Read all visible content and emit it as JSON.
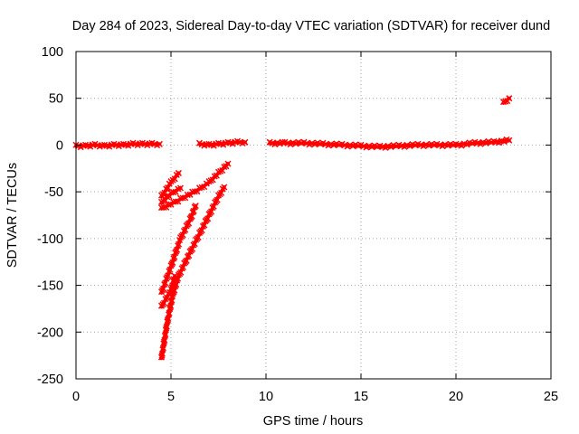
{
  "chart_data": {
    "type": "scatter",
    "title": "Day 284 of 2023, Sidereal Day-to-day VTEC variation (SDTVAR) for receiver dund",
    "xlabel": "GPS time / hours",
    "ylabel": "SDTVAR / TECUs",
    "xlim": [
      0,
      25
    ],
    "ylim": [
      -250,
      100
    ],
    "xticks": [
      0,
      5,
      10,
      15,
      20,
      25
    ],
    "yticks": [
      -250,
      -200,
      -150,
      -100,
      -50,
      0,
      50,
      100
    ],
    "grid": true,
    "marker": "cross",
    "series": [
      {
        "color": "#ff0000",
        "segments": [
          [
            [
              0.0,
              -1
            ],
            [
              0.5,
              -1
            ],
            [
              1.0,
              0
            ],
            [
              1.5,
              -1
            ],
            [
              2.0,
              0
            ],
            [
              2.5,
              0
            ],
            [
              3.0,
              1
            ],
            [
              3.5,
              1
            ],
            [
              4.0,
              1
            ],
            [
              4.4,
              1
            ]
          ],
          [
            [
              6.5,
              1
            ],
            [
              7.0,
              0
            ],
            [
              7.5,
              1
            ],
            [
              8.0,
              2
            ],
            [
              8.5,
              3
            ],
            [
              8.9,
              3
            ]
          ],
          [
            [
              10.2,
              2
            ],
            [
              11.0,
              2
            ],
            [
              12.0,
              2
            ],
            [
              13.0,
              1
            ],
            [
              14.0,
              0
            ],
            [
              15.0,
              -1
            ],
            [
              16.0,
              -2
            ],
            [
              17.0,
              -1
            ],
            [
              18.0,
              0
            ],
            [
              19.0,
              0
            ],
            [
              20.0,
              0
            ],
            [
              21.0,
              2
            ],
            [
              22.0,
              3
            ],
            [
              22.8,
              5
            ]
          ],
          [
            [
              22.5,
              45
            ],
            [
              22.8,
              50
            ]
          ],
          [
            [
              4.5,
              -55
            ],
            [
              5.0,
              -40
            ],
            [
              5.4,
              -30
            ]
          ],
          [
            [
              4.5,
              -62
            ],
            [
              5.0,
              -52
            ],
            [
              5.5,
              -46
            ]
          ],
          [
            [
              4.5,
              -68
            ],
            [
              5.5,
              -58
            ],
            [
              6.5,
              -47
            ],
            [
              7.0,
              -40
            ],
            [
              7.5,
              -30
            ],
            [
              8.0,
              -20
            ]
          ],
          [
            [
              4.5,
              -158
            ],
            [
              5.0,
              -130
            ],
            [
              5.5,
              -100
            ],
            [
              6.0,
              -80
            ],
            [
              6.3,
              -65
            ]
          ],
          [
            [
              4.5,
              -173
            ],
            [
              5.0,
              -155
            ],
            [
              5.2,
              -140
            ]
          ],
          [
            [
              4.5,
              -228
            ],
            [
              4.8,
              -190
            ],
            [
              5.1,
              -160
            ],
            [
              5.4,
              -140
            ],
            [
              6.0,
              -115
            ],
            [
              6.5,
              -95
            ],
            [
              7.0,
              -75
            ],
            [
              7.5,
              -55
            ],
            [
              7.8,
              -45
            ]
          ]
        ]
      }
    ]
  }
}
